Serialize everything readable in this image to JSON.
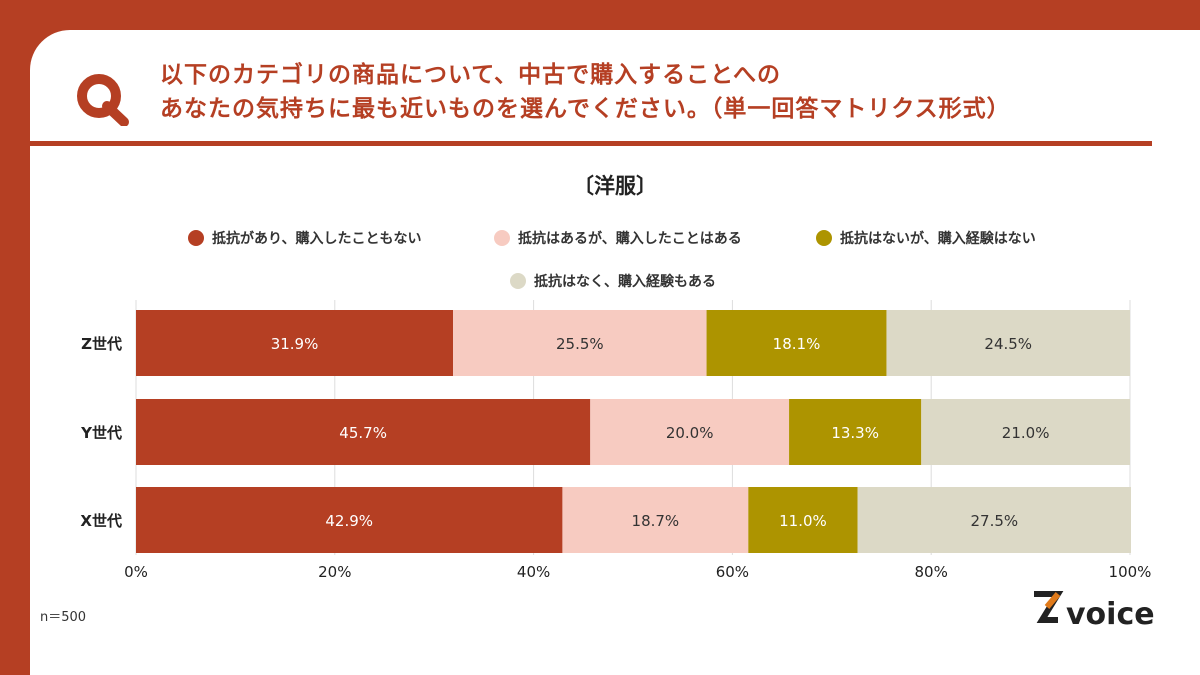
{
  "question": {
    "line1": "以下のカテゴリの商品について、中古で購入することへの",
    "line2": "あなたの気持ちに最も近いものを選んでください。（単一回答マトリクス形式）"
  },
  "footnote": "n＝500",
  "logo": {
    "mark": "Z",
    "text": "voice"
  },
  "chart_data": {
    "type": "bar",
    "orientation": "horizontal",
    "stacked": true,
    "title": "〔洋服〕",
    "categories": [
      "Z世代",
      "Y世代",
      "X世代"
    ],
    "series": [
      {
        "name": "抵抗があり、購入したこともない",
        "values": [
          31.9,
          45.7,
          42.9
        ],
        "color": "#b53f23",
        "label_color": "#ffffff"
      },
      {
        "name": "抵抗はあるが、購入したことはある",
        "values": [
          25.5,
          20.0,
          18.7
        ],
        "color": "#f7cbc1",
        "label_color": "#333333"
      },
      {
        "name": "抵抗はないが、購入経験はない",
        "values": [
          18.1,
          13.3,
          11.0
        ],
        "color": "#ad9400",
        "label_color": "#ffffff"
      },
      {
        "name": "抵抗はなく、購入経験もある",
        "values": [
          24.5,
          21.0,
          27.5
        ],
        "color": "#dcd9c6",
        "label_color": "#333333"
      }
    ],
    "xlim": [
      0,
      100
    ],
    "x_ticks": [
      "0%",
      "20%",
      "40%",
      "60%",
      "80%",
      "100%"
    ],
    "x_tick_values": [
      0,
      20,
      40,
      60,
      80,
      100
    ],
    "grid": true,
    "legend": "top"
  }
}
